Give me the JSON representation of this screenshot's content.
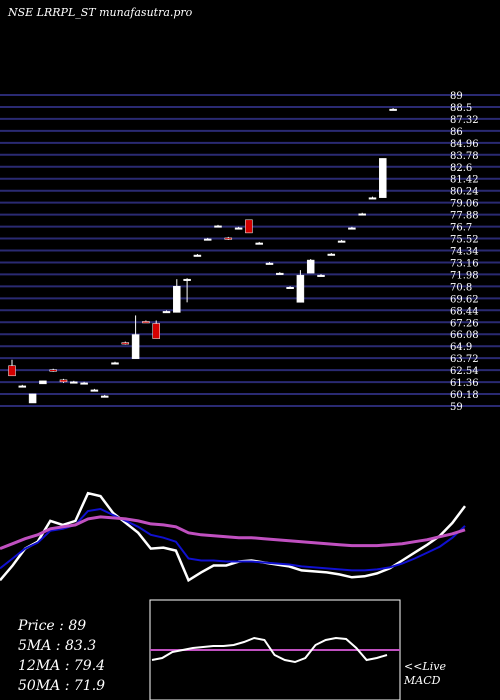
{
  "header": {
    "title": "NSE LRRPL_ST munafasutra.pro"
  },
  "summary": {
    "price": "Price   : 89",
    "ma5": "5MA : 83.3",
    "ma12": "12MA : 79.4",
    "ma50": "50MA : 71.9"
  },
  "macd": {
    "line1": "<<Live",
    "line2": "MACD"
  },
  "colors": {
    "background": "#000000",
    "grid": "#2a2a72",
    "up": "#ffffff",
    "down": "#d40000",
    "ma_short": "#ffffff",
    "ma_mid": "#1010d0",
    "ma_long": "#c050c0"
  },
  "chart_data": {
    "type": "candlestick",
    "title": "NSE LRRPL_ST munafasutra.pro",
    "ylim": [
      59,
      89.9
    ],
    "y_tick_labels": [
      "89",
      "88.5",
      "87.32",
      "86",
      "84.96",
      "83.78",
      "82.6",
      "81.42",
      "80.24",
      "79.06",
      "77.88",
      "76.7",
      "75.52",
      "74.34",
      "73.16",
      "71.98",
      "70.8",
      "69.62",
      "68.44",
      "67.26",
      "66.08",
      "64.9",
      "63.72",
      "62.54",
      "61.36",
      "60.18",
      "59"
    ],
    "candles": [
      {
        "o": 63.0,
        "h": 63.6,
        "l": 62.0,
        "c": 62.0
      },
      {
        "o": 61.0,
        "h": 61.1,
        "l": 60.9,
        "c": 61.0
      },
      {
        "o": 59.3,
        "h": 60.2,
        "l": 59.3,
        "c": 60.2
      },
      {
        "o": 61.2,
        "h": 61.5,
        "l": 61.2,
        "c": 61.5
      },
      {
        "o": 62.6,
        "h": 62.7,
        "l": 62.4,
        "c": 62.5
      },
      {
        "o": 61.6,
        "h": 61.7,
        "l": 61.3,
        "c": 61.4
      },
      {
        "o": 61.4,
        "h": 61.5,
        "l": 61.3,
        "c": 61.4
      },
      {
        "o": 61.3,
        "h": 61.4,
        "l": 61.2,
        "c": 61.3
      },
      {
        "o": 60.6,
        "h": 60.7,
        "l": 60.5,
        "c": 60.6
      },
      {
        "o": 60.0,
        "h": 60.1,
        "l": 59.9,
        "c": 60.0
      },
      {
        "o": 63.3,
        "h": 63.4,
        "l": 63.2,
        "c": 63.3
      },
      {
        "o": 65.3,
        "h": 65.4,
        "l": 65.1,
        "c": 65.2
      },
      {
        "o": 63.7,
        "h": 68.0,
        "l": 63.7,
        "c": 66.1
      },
      {
        "o": 67.4,
        "h": 67.5,
        "l": 67.3,
        "c": 67.3
      },
      {
        "o": 67.2,
        "h": 67.5,
        "l": 65.7,
        "c": 65.7
      },
      {
        "o": 68.4,
        "h": 68.5,
        "l": 68.3,
        "c": 68.4
      },
      {
        "o": 68.3,
        "h": 71.6,
        "l": 68.3,
        "c": 70.9
      },
      {
        "o": 71.6,
        "h": 71.7,
        "l": 69.3,
        "c": 71.6
      },
      {
        "o": 74.0,
        "h": 74.1,
        "l": 73.9,
        "c": 74.0
      },
      {
        "o": 75.6,
        "h": 75.7,
        "l": 75.5,
        "c": 75.6
      },
      {
        "o": 76.9,
        "h": 77.0,
        "l": 76.8,
        "c": 76.9
      },
      {
        "o": 75.7,
        "h": 75.8,
        "l": 75.5,
        "c": 75.6
      },
      {
        "o": 76.7,
        "h": 76.8,
        "l": 76.6,
        "c": 76.7
      },
      {
        "o": 77.5,
        "h": 77.5,
        "l": 76.2,
        "c": 76.2
      },
      {
        "o": 75.2,
        "h": 75.3,
        "l": 75.1,
        "c": 75.2
      },
      {
        "o": 73.2,
        "h": 73.3,
        "l": 73.1,
        "c": 73.2
      },
      {
        "o": 72.2,
        "h": 72.3,
        "l": 72.1,
        "c": 72.2
      },
      {
        "o": 70.8,
        "h": 70.9,
        "l": 70.7,
        "c": 70.8
      },
      {
        "o": 69.3,
        "h": 72.5,
        "l": 69.3,
        "c": 72.0
      },
      {
        "o": 72.2,
        "h": 73.6,
        "l": 72.2,
        "c": 73.5
      },
      {
        "o": 72.0,
        "h": 72.1,
        "l": 71.9,
        "c": 72.0
      },
      {
        "o": 74.1,
        "h": 74.2,
        "l": 74.0,
        "c": 74.1
      },
      {
        "o": 75.4,
        "h": 75.5,
        "l": 75.3,
        "c": 75.4
      },
      {
        "o": 76.7,
        "h": 76.8,
        "l": 76.6,
        "c": 76.7
      },
      {
        "o": 78.1,
        "h": 78.2,
        "l": 78.0,
        "c": 78.1
      },
      {
        "o": 79.7,
        "h": 79.8,
        "l": 79.6,
        "c": 79.7
      },
      {
        "o": 79.7,
        "h": 83.6,
        "l": 79.7,
        "c": 83.6
      },
      {
        "o": 88.5,
        "h": 88.6,
        "l": 88.4,
        "c": 88.5
      }
    ],
    "ma_series": [
      {
        "values": [
          0.3,
          0.45,
          0.62,
          0.69,
          0.9,
          0.86,
          0.9,
          1.18,
          1.15,
          0.98,
          0.88,
          0.78,
          0.62,
          0.63,
          0.6,
          0.3,
          0.38,
          0.45,
          0.45,
          0.49,
          0.5,
          0.48,
          0.46,
          0.44,
          0.4,
          0.39,
          0.38,
          0.36,
          0.33,
          0.34,
          0.37,
          0.42,
          0.5,
          0.58,
          0.66,
          0.75,
          0.88,
          1.05
        ]
      },
      {
        "values": [
          0.42,
          0.52,
          0.62,
          0.68,
          0.8,
          0.82,
          0.86,
          1.0,
          1.02,
          0.96,
          0.9,
          0.84,
          0.76,
          0.73,
          0.69,
          0.52,
          0.5,
          0.5,
          0.49,
          0.49,
          0.49,
          0.48,
          0.47,
          0.46,
          0.44,
          0.43,
          0.42,
          0.41,
          0.4,
          0.4,
          0.41,
          0.43,
          0.47,
          0.52,
          0.58,
          0.64,
          0.73,
          0.85
        ]
      },
      {
        "values": [
          0.62,
          0.67,
          0.72,
          0.76,
          0.82,
          0.84,
          0.86,
          0.92,
          0.94,
          0.93,
          0.92,
          0.9,
          0.87,
          0.86,
          0.84,
          0.78,
          0.76,
          0.75,
          0.74,
          0.73,
          0.73,
          0.72,
          0.71,
          0.7,
          0.69,
          0.68,
          0.67,
          0.66,
          0.65,
          0.65,
          0.65,
          0.66,
          0.67,
          0.69,
          0.71,
          0.74,
          0.77,
          0.81
        ]
      }
    ],
    "macd": {
      "values": [
        0.6,
        0.58,
        0.52,
        0.5,
        0.48,
        0.47,
        0.46,
        0.46,
        0.45,
        0.42,
        0.38,
        0.4,
        0.55,
        0.6,
        0.62,
        0.58,
        0.45,
        0.4,
        0.38,
        0.39,
        0.48,
        0.6,
        0.58,
        0.55
      ]
    }
  }
}
